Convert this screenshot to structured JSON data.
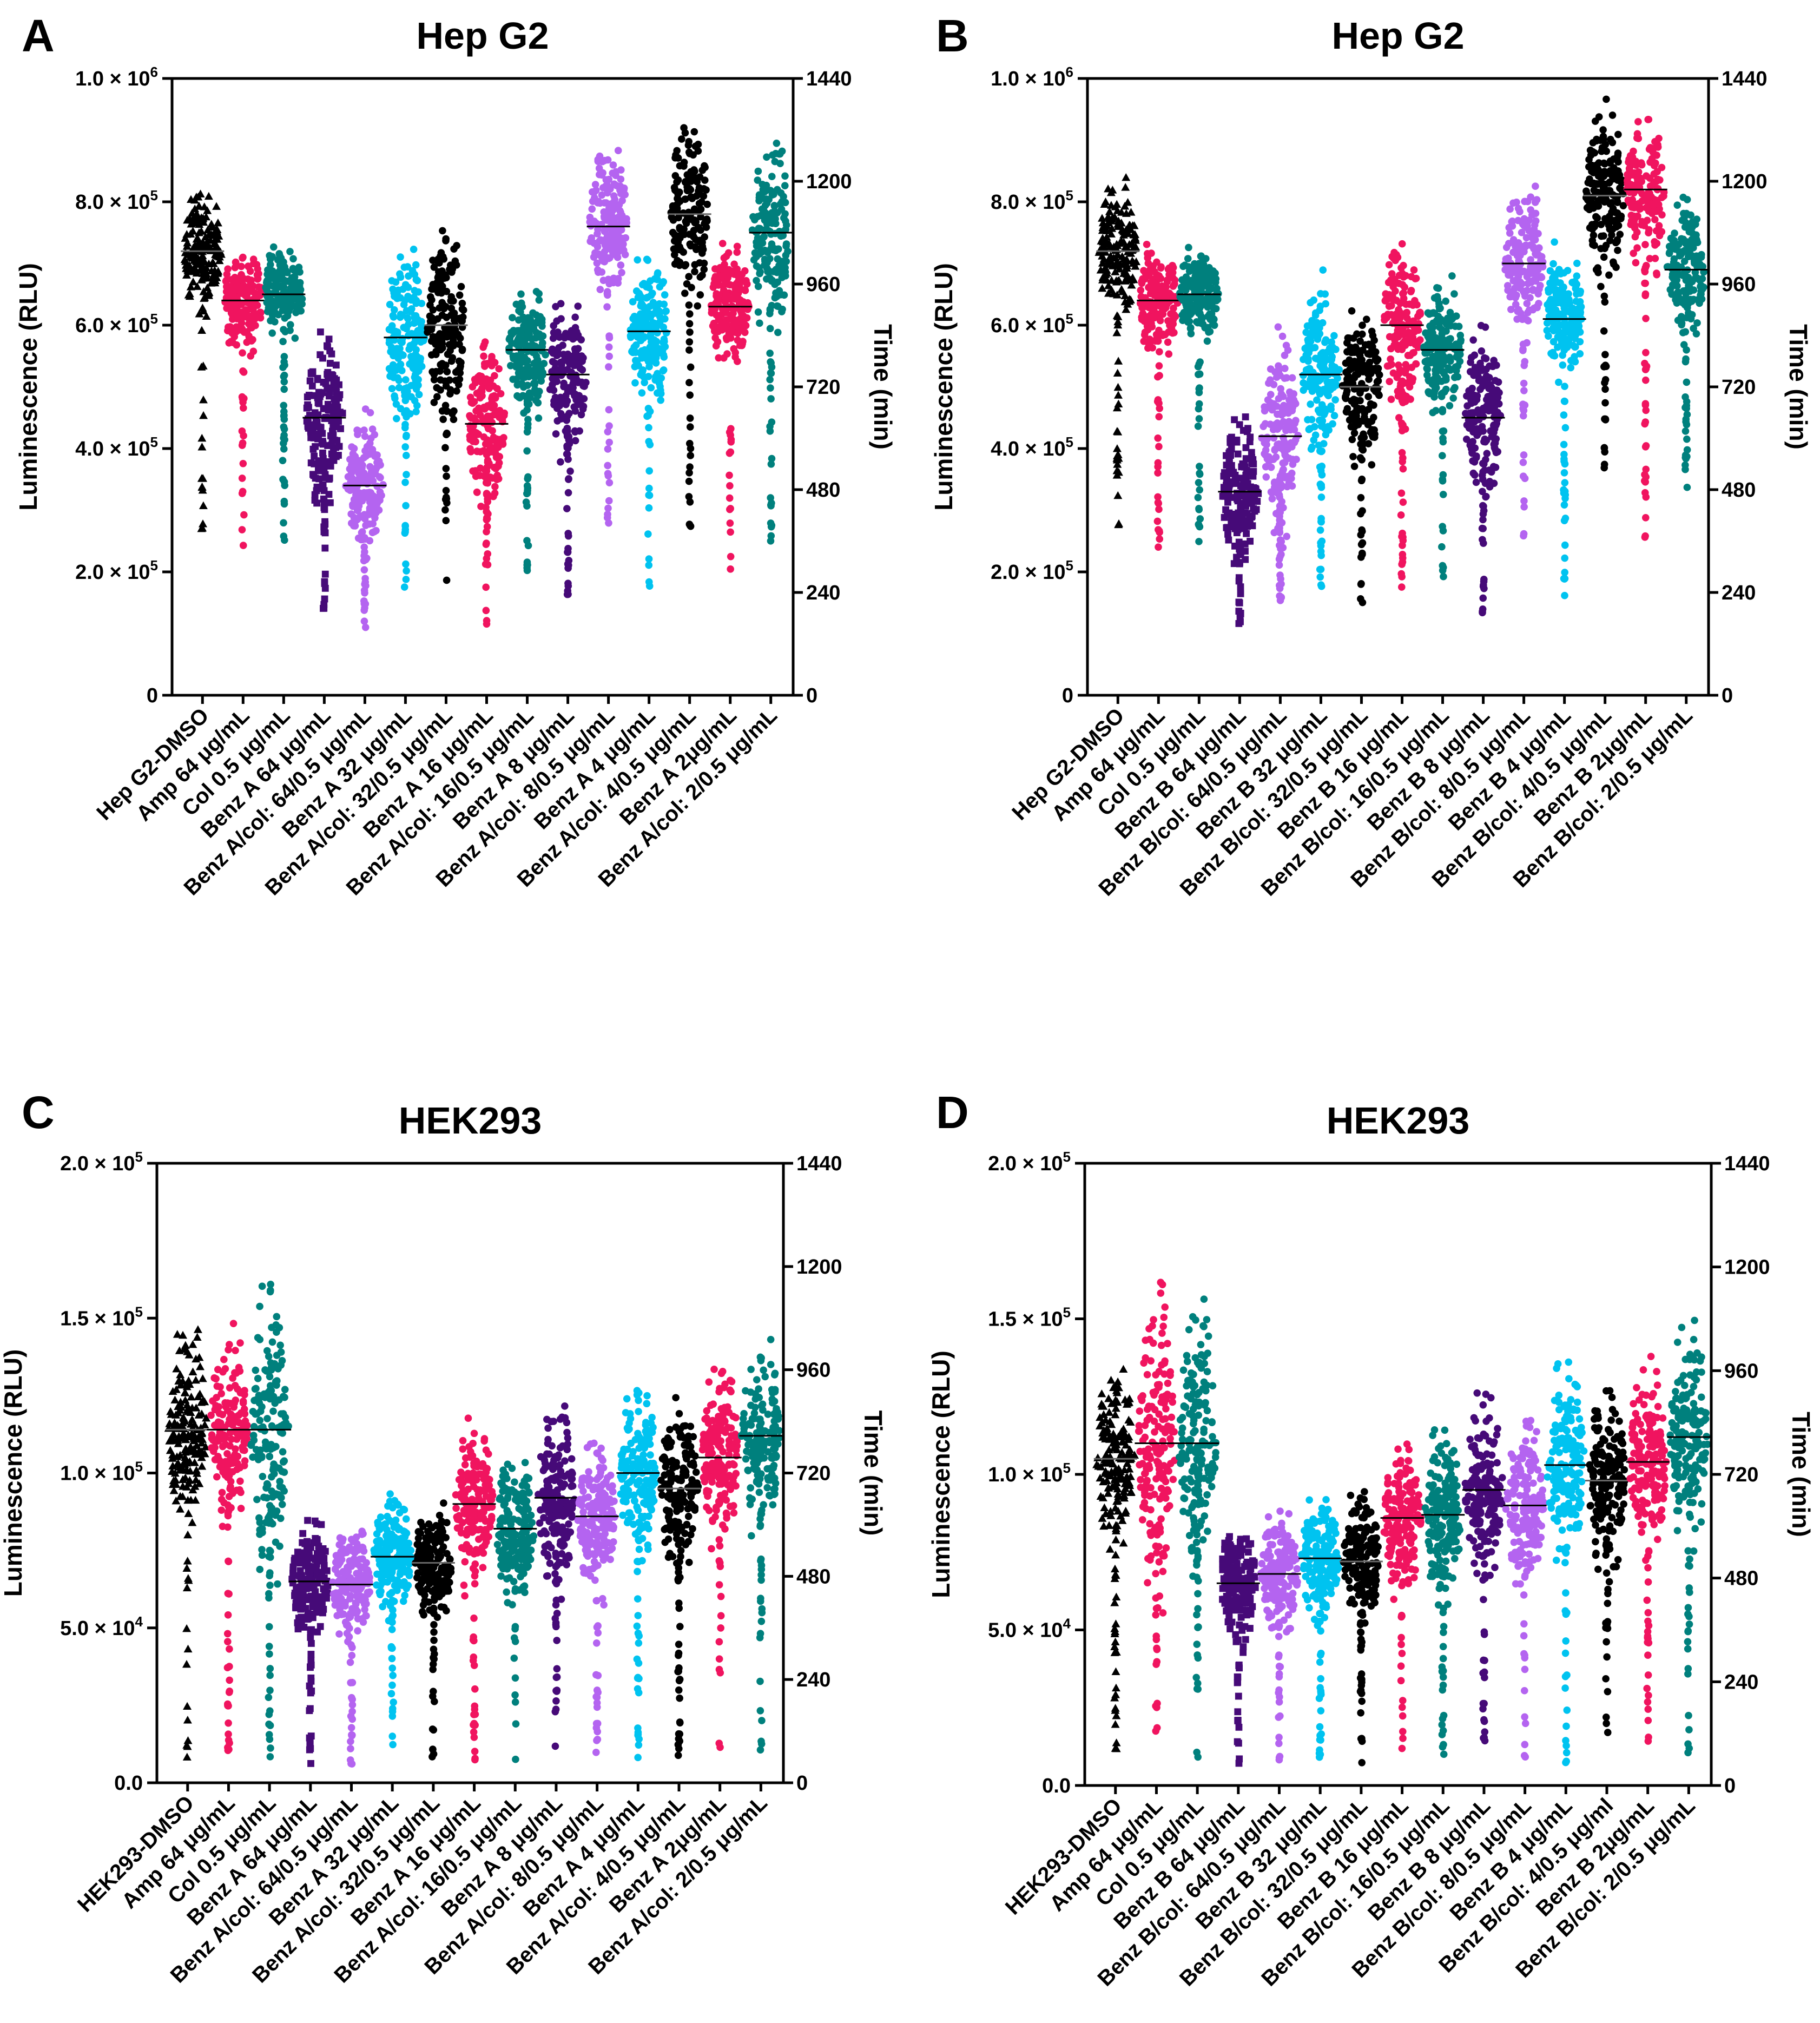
{
  "colors": {
    "black": "#000000",
    "pink": "#f0145f",
    "teal": "#00807d",
    "purple": "#460a78",
    "lavender": "#b464f0",
    "cyan": "#00c3f0"
  },
  "chart_data": [
    {
      "id": "A",
      "type": "scatter",
      "panel_label": "A",
      "title": "Hep G2",
      "ylabel": "Luminescence (RLU)",
      "y2label": "Time (min)",
      "ylim": [
        0,
        1000000
      ],
      "y2lim": [
        0,
        1440
      ],
      "yticks": [
        {
          "value": 0,
          "mant": "0",
          "exp": ""
        },
        {
          "value": 200000,
          "mant": "2.0 × 10",
          "exp": "5"
        },
        {
          "value": 400000,
          "mant": "4.0 × 10",
          "exp": "5"
        },
        {
          "value": 600000,
          "mant": "6.0 × 10",
          "exp": "5"
        },
        {
          "value": 800000,
          "mant": "8.0 × 10",
          "exp": "5"
        },
        {
          "value": 1000000,
          "mant": "1.0 × 10",
          "exp": "6"
        }
      ],
      "y2ticks": [
        "0",
        "240",
        "480",
        "720",
        "960",
        "1200",
        "1440"
      ],
      "categories": [
        "Hep G2-DMSO",
        "Amp 64 μg/mL",
        "Col 0.5 μg/mL",
        "Benz A 64 μg/mL",
        "Benz A/col: 64/0.5 μg/mL",
        "Benz A 32 μg/mL",
        "Benz A/col: 32/0.5 μg/mL",
        "Benz A 16 μg/mL",
        "Benz A/col: 16/0.5 μg/mL",
        "Benz A 8 μg/mL",
        "Benz A/col: 8/0.5 μg/mL",
        "Benz A 4 μg/mL",
        "Benz A/col: 4/0.5 μg/mL",
        "Benz A 2μg/mL",
        "Benz A/col: 2/0.5 μg/mL"
      ],
      "series": [
        {
          "color": "black",
          "marker": "triangle",
          "min": 270000,
          "max": 840000,
          "median": 720000
        },
        {
          "color": "pink",
          "marker": "circle",
          "min": 240000,
          "max": 740000,
          "median": 640000
        },
        {
          "color": "teal",
          "marker": "circle",
          "min": 245000,
          "max": 745000,
          "median": 650000
        },
        {
          "color": "purple",
          "marker": "square",
          "min": 135000,
          "max": 615000,
          "median": 450000
        },
        {
          "color": "lavender",
          "marker": "circle",
          "min": 100000,
          "max": 470000,
          "median": 340000
        },
        {
          "color": "cyan",
          "marker": "circle",
          "min": 160000,
          "max": 760000,
          "median": 580000
        },
        {
          "color": "black",
          "marker": "circle",
          "min": 180000,
          "max": 790000,
          "median": 600000
        },
        {
          "color": "pink",
          "marker": "circle",
          "min": 115000,
          "max": 595000,
          "median": 440000
        },
        {
          "color": "teal",
          "marker": "circle",
          "min": 180000,
          "max": 680000,
          "median": 560000
        },
        {
          "color": "purple",
          "marker": "circle",
          "min": 135000,
          "max": 680000,
          "median": 520000
        },
        {
          "color": "lavender",
          "marker": "circle",
          "min": 270000,
          "max": 915000,
          "median": 760000
        },
        {
          "color": "cyan",
          "marker": "circle",
          "min": 160000,
          "max": 730000,
          "median": 590000
        },
        {
          "color": "black",
          "marker": "circle",
          "min": 270000,
          "max": 955000,
          "median": 780000
        },
        {
          "color": "pink",
          "marker": "circle",
          "min": 195000,
          "max": 745000,
          "median": 630000
        },
        {
          "color": "teal",
          "marker": "circle",
          "min": 250000,
          "max": 935000,
          "median": 750000
        }
      ]
    },
    {
      "id": "B",
      "type": "scatter",
      "panel_label": "B",
      "title": "Hep G2",
      "ylabel": "Luminescence (RLU)",
      "y2label": "Time (min)",
      "ylim": [
        0,
        1000000
      ],
      "y2lim": [
        0,
        1440
      ],
      "yticks": [
        {
          "value": 0,
          "mant": "0",
          "exp": ""
        },
        {
          "value": 200000,
          "mant": "2.0 × 10",
          "exp": "5"
        },
        {
          "value": 400000,
          "mant": "4.0 × 10",
          "exp": "5"
        },
        {
          "value": 600000,
          "mant": "6.0 × 10",
          "exp": "5"
        },
        {
          "value": 800000,
          "mant": "8.0 × 10",
          "exp": "5"
        },
        {
          "value": 1000000,
          "mant": "1.0 × 10",
          "exp": "6"
        }
      ],
      "y2ticks": [
        "0",
        "240",
        "480",
        "720",
        "960",
        "1200",
        "1440"
      ],
      "categories": [
        "Hep G2-DMSO",
        "Amp 64 μg/mL",
        "Col 0.5 μg/mL",
        "Benz B 64 μg/mL",
        "Benz B/col: 64/0.5 μg/mL",
        "Benz B 32 μg/mL",
        "Benz B/col: 32/0.5 μg/mL",
        "Benz B 16 μg/mL",
        "Benz B/col: 16/0.5 μg/mL",
        "Benz B 8 μg/mL",
        "Benz B/col: 8/0.5 μg/mL",
        "Benz B 4 μg/mL",
        "Benz B/col: 4/0.5 μg/mL",
        "Benz B 2μg/mL",
        "Benz B/col: 2/0.5 μg/mL"
      ],
      "series": [
        {
          "color": "black",
          "marker": "triangle",
          "min": 270000,
          "max": 840000,
          "median": 720000
        },
        {
          "color": "pink",
          "marker": "circle",
          "min": 240000,
          "max": 740000,
          "median": 640000
        },
        {
          "color": "teal",
          "marker": "circle",
          "min": 245000,
          "max": 745000,
          "median": 650000
        },
        {
          "color": "purple",
          "marker": "square",
          "min": 105000,
          "max": 470000,
          "median": 330000
        },
        {
          "color": "lavender",
          "marker": "circle",
          "min": 145000,
          "max": 610000,
          "median": 420000
        },
        {
          "color": "cyan",
          "marker": "circle",
          "min": 160000,
          "max": 690000,
          "median": 520000
        },
        {
          "color": "black",
          "marker": "circle",
          "min": 150000,
          "max": 660000,
          "median": 500000
        },
        {
          "color": "pink",
          "marker": "circle",
          "min": 175000,
          "max": 790000,
          "median": 600000
        },
        {
          "color": "teal",
          "marker": "circle",
          "min": 190000,
          "max": 685000,
          "median": 560000
        },
        {
          "color": "purple",
          "marker": "circle",
          "min": 120000,
          "max": 605000,
          "median": 450000
        },
        {
          "color": "lavender",
          "marker": "circle",
          "min": 250000,
          "max": 850000,
          "median": 700000
        },
        {
          "color": "cyan",
          "marker": "circle",
          "min": 160000,
          "max": 735000,
          "median": 610000
        },
        {
          "color": "black",
          "marker": "circle",
          "min": 315000,
          "max": 970000,
          "median": 810000
        },
        {
          "color": "pink",
          "marker": "circle",
          "min": 250000,
          "max": 970000,
          "median": 820000
        },
        {
          "color": "teal",
          "marker": "circle",
          "min": 335000,
          "max": 840000,
          "median": 690000
        }
      ]
    },
    {
      "id": "C",
      "type": "scatter",
      "panel_label": "C",
      "title": "HEK293",
      "ylabel": "Luminescence (RLU)",
      "y2label": "Time (min)",
      "ylim": [
        0,
        200000
      ],
      "y2lim": [
        0,
        1440
      ],
      "yticks": [
        {
          "value": 0,
          "mant": "0.0",
          "exp": ""
        },
        {
          "value": 50000,
          "mant": "5.0 × 10",
          "exp": "4"
        },
        {
          "value": 100000,
          "mant": "1.0 × 10",
          "exp": "5"
        },
        {
          "value": 150000,
          "mant": "1.5 × 10",
          "exp": "5"
        },
        {
          "value": 200000,
          "mant": "2.0 × 10",
          "exp": "5"
        }
      ],
      "y2ticks": [
        "0",
        "240",
        "480",
        "720",
        "960",
        "1200",
        "1440"
      ],
      "categories": [
        "HEK293-DMSO",
        "Amp 64 μg/mL",
        "Col 0.5 μg/mL",
        "Benz A 64 μg/mL",
        "Benz A/col: 64/0.5 μg/mL",
        "Benz A 32 μg/mL",
        "Benz A/col: 32/0.5 μg/mL",
        "Benz A 16 μg/mL",
        "Benz A/col: 16/0.5 μg/mL",
        "Benz A 8 μg/mL",
        "Benz A/col: 8/0.5 μg/mL",
        "Benz A 4 μg/mL",
        "Benz A/col: 4/0.5 μg/mL",
        "Benz A 2μg/mL",
        "Benz A/col: 2/0.5 μg/mL"
      ],
      "series": [
        {
          "color": "black",
          "marker": "triangle",
          "min": 8000,
          "max": 151000,
          "median": 114000
        },
        {
          "color": "pink",
          "marker": "circle",
          "min": 8000,
          "max": 151000,
          "median": 114000
        },
        {
          "color": "teal",
          "marker": "circle",
          "min": 8000,
          "max": 174000,
          "median": 114000
        },
        {
          "color": "purple",
          "marker": "square",
          "min": 6000,
          "max": 87000,
          "median": 65000
        },
        {
          "color": "lavender",
          "marker": "circle",
          "min": 6000,
          "max": 86000,
          "median": 64000
        },
        {
          "color": "cyan",
          "marker": "circle",
          "min": 7000,
          "max": 97000,
          "median": 73000
        },
        {
          "color": "black",
          "marker": "circle",
          "min": 6000,
          "max": 93000,
          "median": 71000
        },
        {
          "color": "pink",
          "marker": "circle",
          "min": 7000,
          "max": 119000,
          "median": 90000
        },
        {
          "color": "teal",
          "marker": "circle",
          "min": 6000,
          "max": 110000,
          "median": 82000
        },
        {
          "color": "purple",
          "marker": "circle",
          "min": 7000,
          "max": 125000,
          "median": 92000
        },
        {
          "color": "lavender",
          "marker": "circle",
          "min": 7000,
          "max": 117000,
          "median": 86000
        },
        {
          "color": "cyan",
          "marker": "circle",
          "min": 7000,
          "max": 132000,
          "median": 100000
        },
        {
          "color": "black",
          "marker": "circle",
          "min": 7000,
          "max": 127000,
          "median": 95000
        },
        {
          "color": "pink",
          "marker": "circle",
          "min": 8000,
          "max": 138000,
          "median": 105000
        },
        {
          "color": "teal",
          "marker": "circle",
          "min": 8000,
          "max": 147000,
          "median": 112000
        }
      ]
    },
    {
      "id": "D",
      "type": "scatter",
      "panel_label": "D",
      "title": "HEK293",
      "ylabel": "Luminescence (RLU)",
      "y2label": "Time (min)",
      "ylim": [
        0,
        200000
      ],
      "y2lim": [
        0,
        1440
      ],
      "yticks": [
        {
          "value": 0,
          "mant": "0.0",
          "exp": ""
        },
        {
          "value": 50000,
          "mant": "5.0 × 10",
          "exp": "4"
        },
        {
          "value": 100000,
          "mant": "1.0 × 10",
          "exp": "5"
        },
        {
          "value": 150000,
          "mant": "1.5 × 10",
          "exp": "5"
        },
        {
          "value": 200000,
          "mant": "2.0 × 10",
          "exp": "5"
        }
      ],
      "y2ticks": [
        "0",
        "240",
        "480",
        "720",
        "960",
        "1200",
        "1440"
      ],
      "categories": [
        "HEK293-DMSO",
        "Amp 64 μg/mL",
        "Col 0.5 μg/mL",
        "Benz B 64 μg/mL",
        "Benz B/col: 64/0.5 μg/mL",
        "Benz B 32 μg/mL",
        "Benz B/col: 32/0.5 μg/mL",
        "Benz B 16 μg/mL",
        "Benz B/col: 16/0.5 μg/mL",
        "Benz B 8 μg/mL",
        "Benz B/col: 8/0.5 μg/mL",
        "Benz B 4 μg/mL",
        "Benz B/col: 4/0.5 μg/ml",
        "Benz B 2μg/mL",
        "Benz B/col: 2/0.5 μg/mL"
      ],
      "series": [
        {
          "color": "black",
          "marker": "triangle",
          "min": 8000,
          "max": 140000,
          "median": 105000
        },
        {
          "color": "pink",
          "marker": "circle",
          "min": 8000,
          "max": 168000,
          "median": 110000
        },
        {
          "color": "teal",
          "marker": "circle",
          "min": 8000,
          "max": 168000,
          "median": 110000
        },
        {
          "color": "purple",
          "marker": "square",
          "min": 6000,
          "max": 87000,
          "median": 65000
        },
        {
          "color": "lavender",
          "marker": "circle",
          "min": 6000,
          "max": 91000,
          "median": 68000
        },
        {
          "color": "cyan",
          "marker": "circle",
          "min": 7000,
          "max": 97000,
          "median": 73000
        },
        {
          "color": "black",
          "marker": "circle",
          "min": 6000,
          "max": 97000,
          "median": 72000
        },
        {
          "color": "pink",
          "marker": "circle",
          "min": 7000,
          "max": 115000,
          "median": 86000
        },
        {
          "color": "teal",
          "marker": "circle",
          "min": 6000,
          "max": 118000,
          "median": 87000
        },
        {
          "color": "purple",
          "marker": "circle",
          "min": 7000,
          "max": 129000,
          "median": 95000
        },
        {
          "color": "lavender",
          "marker": "circle",
          "min": 6000,
          "max": 123000,
          "median": 90000
        },
        {
          "color": "cyan",
          "marker": "circle",
          "min": 7000,
          "max": 138000,
          "median": 103000
        },
        {
          "color": "black",
          "marker": "circle",
          "min": 7000,
          "max": 133000,
          "median": 98000
        },
        {
          "color": "pink",
          "marker": "circle",
          "min": 7000,
          "max": 139000,
          "median": 104000
        },
        {
          "color": "teal",
          "marker": "circle",
          "min": 8000,
          "max": 152000,
          "median": 112000
        }
      ]
    }
  ]
}
